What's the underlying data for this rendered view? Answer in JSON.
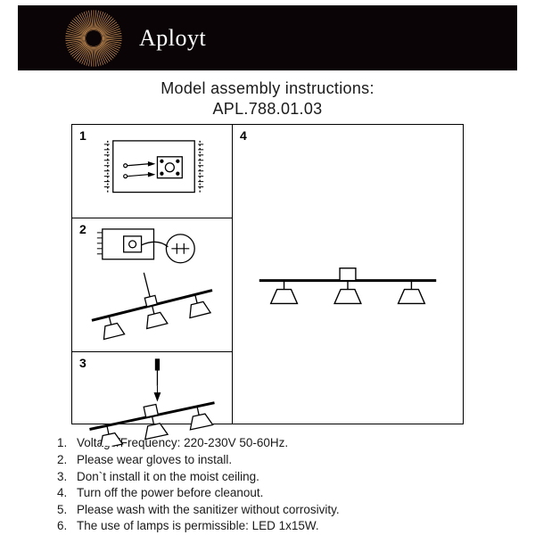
{
  "banner": {
    "brand": "Aployt",
    "background": "#0b0406",
    "sunburst_color": "#d3975a",
    "fan_color": "#d3975a"
  },
  "title": {
    "line1": "Model assembly instructions:",
    "line2": "APL.788.01.03"
  },
  "steps": {
    "s1": "1",
    "s2": "2",
    "s3": "3",
    "s4": "4"
  },
  "notes": [
    {
      "n": "1.",
      "t": "Voltage/Frequency: 220-230V 50-60Hz."
    },
    {
      "n": "2.",
      "t": "Please wear gloves to install."
    },
    {
      "n": "3.",
      "t": "Don`t install it on the moist ceiling."
    },
    {
      "n": "4.",
      "t": "Turn off the power before cleanout."
    },
    {
      "n": "5.",
      "t": "Please wash with the sanitizer without corrosivity."
    },
    {
      "n": "6.",
      "t": "The use of lamps is permissible: LED 1x15W."
    }
  ],
  "style": {
    "page_bg": "#ffffff",
    "stroke": "#000000",
    "title_fontsize": 18,
    "notes_fontsize": 13.5
  }
}
